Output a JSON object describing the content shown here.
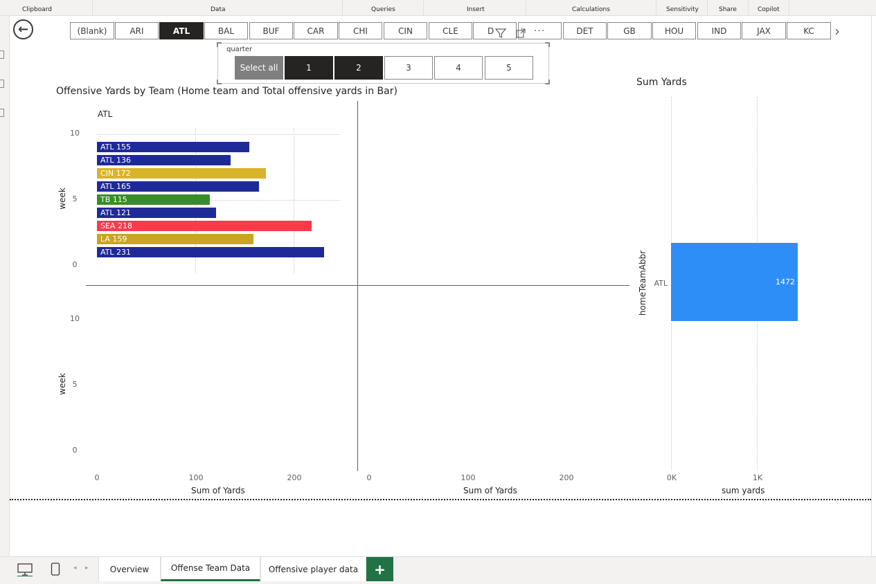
{
  "ribbon": {
    "groups": [
      "Clipboard",
      "Data",
      "Queries",
      "Insert",
      "Calculations",
      "Sensitivity",
      "Share",
      "Copilot"
    ]
  },
  "team_slicer": {
    "teams": [
      "(Blank)",
      "ARI",
      "ATL",
      "BAL",
      "BUF",
      "CAR",
      "CHI",
      "CIN",
      "CLE",
      "D",
      "",
      "DET",
      "GB",
      "HOU",
      "IND",
      "JAX",
      "KC"
    ],
    "selected": "ATL"
  },
  "quarter_slicer": {
    "title": "quarter",
    "options": [
      "Select all",
      "1",
      "2",
      "3",
      "4",
      "5"
    ],
    "selected": [
      "1",
      "2"
    ]
  },
  "offense_chart": {
    "title": "Offensive Yards by Team (Home team and Total offensive yards in Bar)",
    "panel_title": "ATL",
    "ylabel": "week",
    "xlabel": "Sum of Yards",
    "y_ticks_top": [
      "10",
      "5",
      "0"
    ],
    "y_ticks_bottom": [
      "10",
      "5",
      "0"
    ],
    "x_ticks": [
      "0",
      "100",
      "200"
    ],
    "x_ticks_2": [
      "0",
      "100",
      "200"
    ]
  },
  "sum_chart": {
    "title": "Sum Yards",
    "ylabel": "homeTeamAbbr",
    "xlabel": "sum yards",
    "category": "ATL",
    "value_label": "1472",
    "x_ticks": [
      "0K",
      "1K"
    ]
  },
  "colors": {
    "blue": "#1f2a99",
    "gold": "#d9b32a",
    "green": "#3a8c2a",
    "red": "#fd3a4a",
    "olive": "#c8a524",
    "sum_bar": "#2e8ef7",
    "accent": "#217346"
  },
  "chart_data": [
    {
      "type": "bar",
      "orientation": "horizontal",
      "title": "Offensive Yards by Team (Home team and Total offensive yards in Bar)",
      "panel": "ATL",
      "xlabel": "Sum of Yards",
      "ylabel": "week",
      "xlim": [
        0,
        250
      ],
      "ylim": [
        0,
        10
      ],
      "bars": [
        {
          "label": "ATL 155",
          "team": "ATL",
          "week": 9,
          "yards": 155,
          "color": "#1f2a99"
        },
        {
          "label": "ATL 136",
          "team": "ATL",
          "week": 8,
          "yards": 136,
          "color": "#1f2a99"
        },
        {
          "label": "CIN 172",
          "team": "CIN",
          "week": 7,
          "yards": 172,
          "color": "#d9b32a"
        },
        {
          "label": "ATL 165",
          "team": "ATL",
          "week": 6,
          "yards": 165,
          "color": "#1f2a99"
        },
        {
          "label": "TB 115",
          "team": "TB",
          "week": 5,
          "yards": 115,
          "color": "#3a8c2a"
        },
        {
          "label": "ATL 121",
          "team": "ATL",
          "week": 4,
          "yards": 121,
          "color": "#1f2a99"
        },
        {
          "label": "SEA 218",
          "team": "SEA",
          "week": 3,
          "yards": 218,
          "color": "#fd3a4a"
        },
        {
          "label": "LA 159",
          "team": "LA",
          "week": 2,
          "yards": 159,
          "color": "#c8a524"
        },
        {
          "label": "ATL 231",
          "team": "ATL",
          "week": 1,
          "yards": 231,
          "color": "#1f2a99"
        }
      ]
    },
    {
      "type": "bar",
      "orientation": "horizontal",
      "title": "Sum Yards",
      "xlabel": "sum yards",
      "ylabel": "homeTeamAbbr",
      "categories": [
        "ATL"
      ],
      "values": [
        1472
      ],
      "xlim": [
        0,
        1500
      ],
      "x_ticks": [
        "0K",
        "1K"
      ]
    }
  ],
  "tabs": {
    "items": [
      "Overview",
      "Offense Team Data",
      "Offensive player data"
    ],
    "active": "Offense Team Data",
    "add_label": "+"
  }
}
